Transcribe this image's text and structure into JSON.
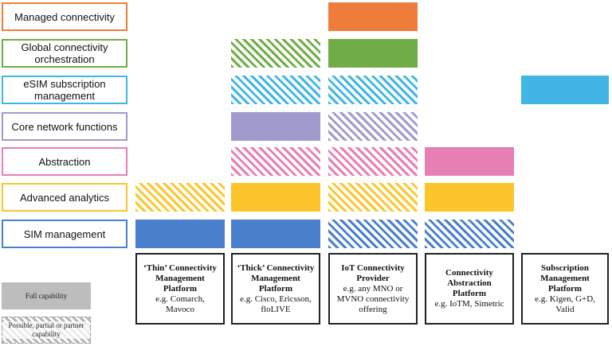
{
  "capabilities": [
    {
      "label": "Managed connectivity",
      "color": "#ee7d3b"
    },
    {
      "label": "Global connectivity orchestration",
      "color": "#70ad47"
    },
    {
      "label": "eSIM subscription management",
      "color": "#41b6e6"
    },
    {
      "label": "Core network functions",
      "color": "#a09bcc"
    },
    {
      "label": "Abstraction",
      "color": "#e67fb4"
    },
    {
      "label": "Advanced analytics",
      "color": "#fcc52b"
    },
    {
      "label": "SIM management",
      "color": "#4a7fcc"
    }
  ],
  "providers": [
    {
      "name": "‘Thin’ Connectivity Management Platform",
      "example": "e.g. Comarch, Mavoco"
    },
    {
      "name": "‘Thick’ Connectivity Management Platform",
      "example": "e.g. Cisco, Ericsson, floLIVE"
    },
    {
      "name": "IoT Connectivity Provider",
      "example": "e.g. any MNO or MVNO connectivity offering"
    },
    {
      "name": "Connectivity Abstraction Platform",
      "example": "e.g. IoTM, Simetric"
    },
    {
      "name": "Subscription Management Platform",
      "example": "e.g. Kigen, G+D, Valid"
    }
  ],
  "matrix": [
    [
      "none",
      "none",
      "full",
      "none",
      "none"
    ],
    [
      "none",
      "partial",
      "full",
      "none",
      "none"
    ],
    [
      "none",
      "partial",
      "partial",
      "none",
      "full"
    ],
    [
      "none",
      "full",
      "partial",
      "none",
      "none"
    ],
    [
      "none",
      "partial",
      "partial",
      "full",
      "none"
    ],
    [
      "partial",
      "full",
      "partial",
      "full",
      "none"
    ],
    [
      "full",
      "full",
      "partial",
      "partial",
      "none"
    ]
  ],
  "legend": {
    "full_label": "Full capability",
    "partial_label": "Possible, partial or partner capability"
  }
}
